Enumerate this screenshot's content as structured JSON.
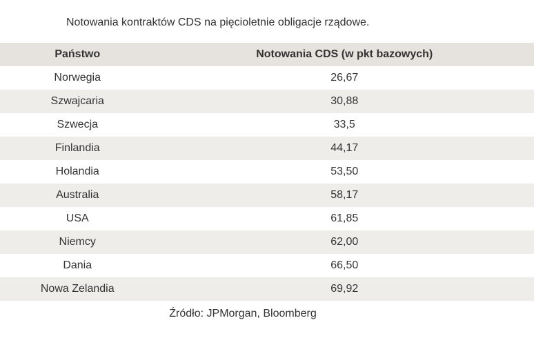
{
  "title": "Notowania kontraktów CDS na pięcioletnie obligacje rządowe.",
  "table": {
    "columns": [
      "Państwo",
      "Notowania CDS (w pkt bazowych)"
    ],
    "rows": [
      [
        "Norwegia",
        "26,67"
      ],
      [
        "Szwajcaria",
        "30,88"
      ],
      [
        "Szwecja",
        "33,5"
      ],
      [
        "Finlandia",
        "44,17"
      ],
      [
        "Holandia",
        "53,50"
      ],
      [
        "Australia",
        "58,17"
      ],
      [
        "USA",
        "61,85"
      ],
      [
        "Niemcy",
        "62,00"
      ],
      [
        "Dania",
        "66,50"
      ],
      [
        "Nowa Zelandia",
        "69,92"
      ]
    ],
    "header_bg": "#e6e3de",
    "row_odd_bg": "#ffffff",
    "row_even_bg": "#efede9",
    "text_color": "#333333",
    "font_size_pt": 12
  },
  "footer": "Źródło: JPMorgan, Bloomberg"
}
